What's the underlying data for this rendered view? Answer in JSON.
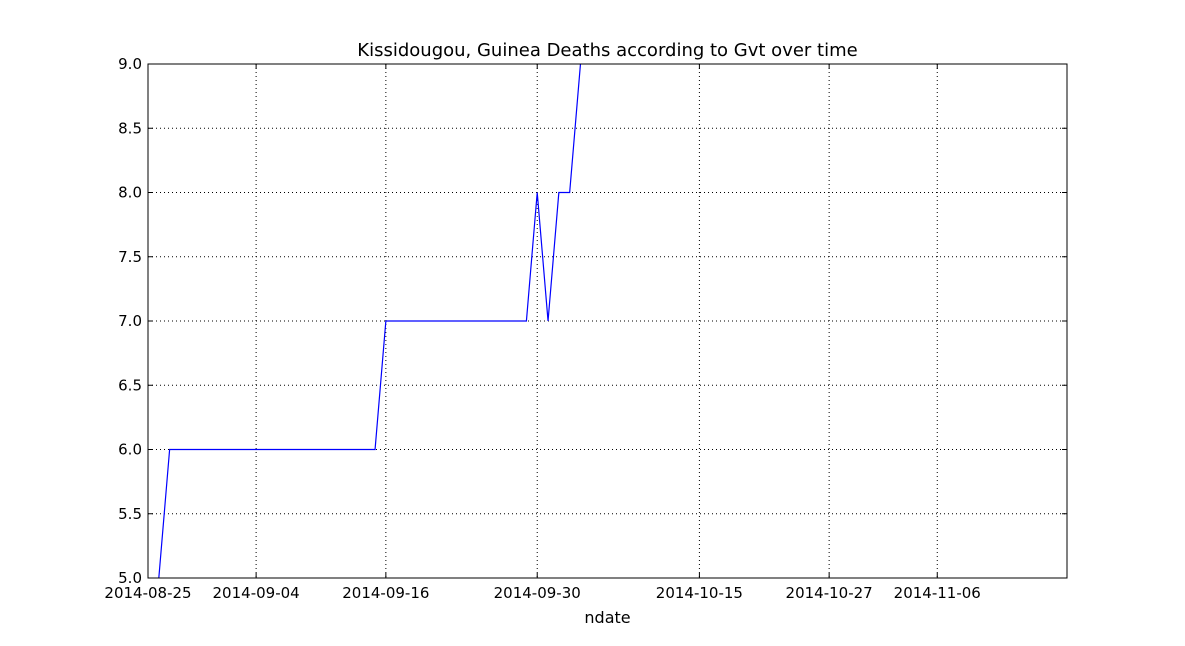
{
  "chart_data": {
    "type": "line",
    "title": "Kissidougou, Guinea Deaths according to Gvt over time",
    "xlabel": "ndate",
    "ylabel": "",
    "x_type": "date",
    "xlim": [
      "2014-08-25",
      "2014-11-18"
    ],
    "ylim": [
      5.0,
      9.0
    ],
    "grid": true,
    "x_ticks": [
      {
        "value": "2014-08-25",
        "label": "2014-08-25"
      },
      {
        "value": "2014-09-04",
        "label": "2014-09-04"
      },
      {
        "value": "2014-09-16",
        "label": "2014-09-16"
      },
      {
        "value": "2014-09-30",
        "label": "2014-09-30"
      },
      {
        "value": "2014-10-15",
        "label": "2014-10-15"
      },
      {
        "value": "2014-10-27",
        "label": "2014-10-27"
      },
      {
        "value": "2014-11-06",
        "label": "2014-11-06"
      }
    ],
    "y_ticks": [
      {
        "value": 5.0,
        "label": "5.0"
      },
      {
        "value": 5.5,
        "label": "5.5"
      },
      {
        "value": 6.0,
        "label": "6.0"
      },
      {
        "value": 6.5,
        "label": "6.5"
      },
      {
        "value": 7.0,
        "label": "7.0"
      },
      {
        "value": 7.5,
        "label": "7.5"
      },
      {
        "value": 8.0,
        "label": "8.0"
      },
      {
        "value": 8.5,
        "label": "8.5"
      },
      {
        "value": 9.0,
        "label": "9.0"
      }
    ],
    "series": [
      {
        "color": "#0000ff",
        "points": [
          {
            "x": "2014-08-26",
            "y": 5.0
          },
          {
            "x": "2014-08-27",
            "y": 6.0
          },
          {
            "x": "2014-09-15",
            "y": 6.0
          },
          {
            "x": "2014-09-16",
            "y": 7.0
          },
          {
            "x": "2014-09-29",
            "y": 7.0
          },
          {
            "x": "2014-09-30",
            "y": 8.0
          },
          {
            "x": "2014-10-01",
            "y": 7.0
          },
          {
            "x": "2014-10-02",
            "y": 8.0
          },
          {
            "x": "2014-10-03",
            "y": 8.0
          },
          {
            "x": "2014-10-04",
            "y": 9.0
          }
        ]
      }
    ]
  }
}
